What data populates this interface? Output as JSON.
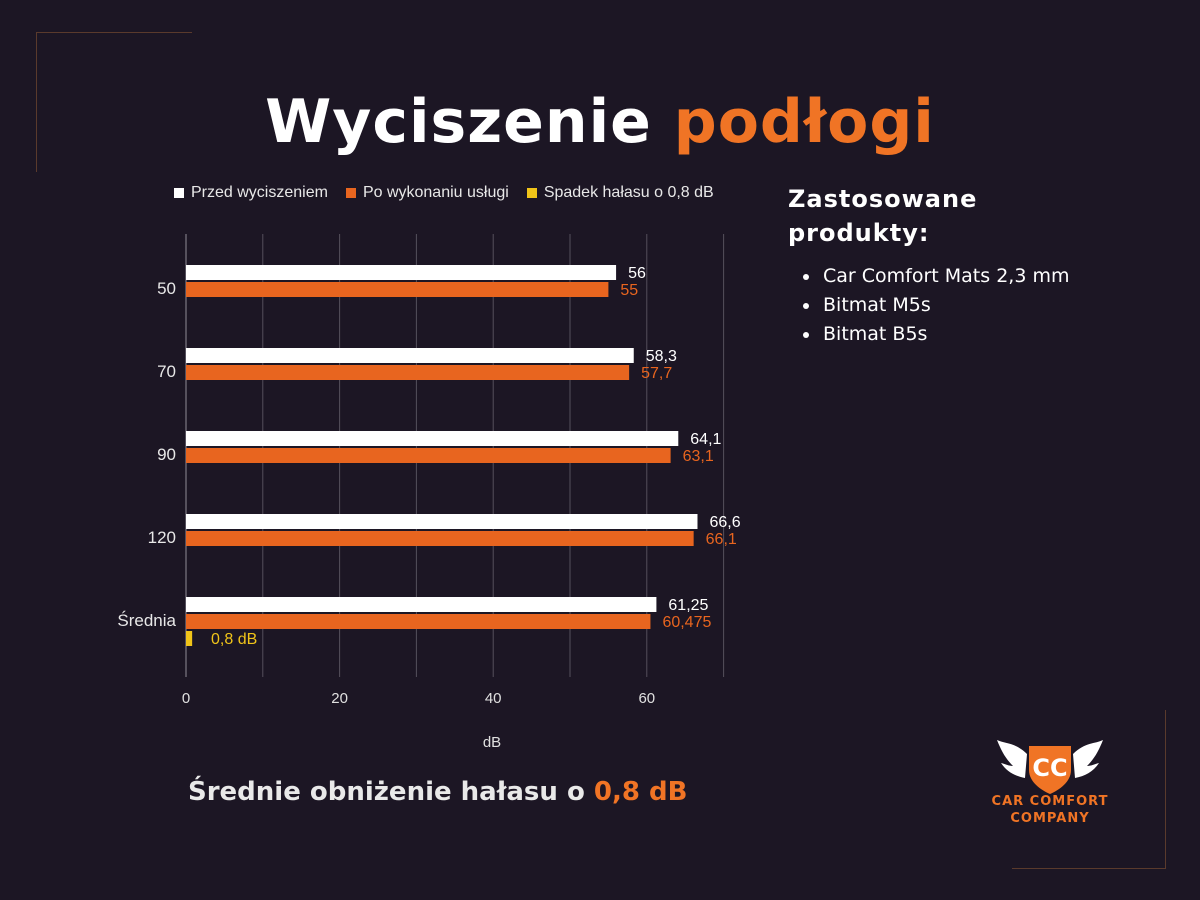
{
  "title": {
    "main": "Wyciszenie",
    "accent": "podłogi"
  },
  "legend": [
    {
      "label": "Przed wyciszeniem",
      "color": "#ffffff"
    },
    {
      "label": "Po wykonaniu usługi",
      "color": "#e8651f"
    },
    {
      "label": "Spadek hałasu o 0,8 dB",
      "color": "#f0c419"
    }
  ],
  "side": {
    "title": "Zastosowane produkty:",
    "products": [
      "Car Comfort Mats 2,3 mm",
      "Bitmat M5s",
      "Bitmat B5s"
    ]
  },
  "summary": {
    "text": "Średnie obniżenie hałasu o",
    "accent": "0,8 dB"
  },
  "logo": {
    "line1": "CAR COMFORT",
    "line2": "COMPANY",
    "monogram": "CC",
    "color": "#f07425"
  },
  "chart_data": {
    "type": "bar",
    "orientation": "horizontal",
    "categories": [
      "50",
      "70",
      "90",
      "120",
      "Średnia"
    ],
    "series": [
      {
        "name": "Przed wyciszeniem",
        "color": "#ffffff",
        "label_color": "#ffffff",
        "values": [
          56,
          58.3,
          64.1,
          66.6,
          61.25
        ],
        "labels": [
          "56",
          "58,3",
          "64,1",
          "66,6",
          "61,25"
        ]
      },
      {
        "name": "Po wykonaniu usługi",
        "color": "#e8651f",
        "label_color": "#e8651f",
        "values": [
          55,
          57.7,
          63.1,
          66.1,
          60.475
        ],
        "labels": [
          "55",
          "57,7",
          "63,1",
          "66,1",
          "60,475"
        ]
      },
      {
        "name": "Spadek hałasu o 0,8 dB",
        "color": "#f0c419",
        "label_color": "#f0c419",
        "values": [
          null,
          null,
          null,
          null,
          0.8
        ],
        "labels": [
          "",
          "",
          "",
          "",
          "0,8 dB"
        ]
      }
    ],
    "xlabel": "dB",
    "xlim": [
      0,
      70
    ],
    "xticks": [
      0,
      20,
      40,
      60
    ],
    "grid": true,
    "legend_position": "top"
  }
}
